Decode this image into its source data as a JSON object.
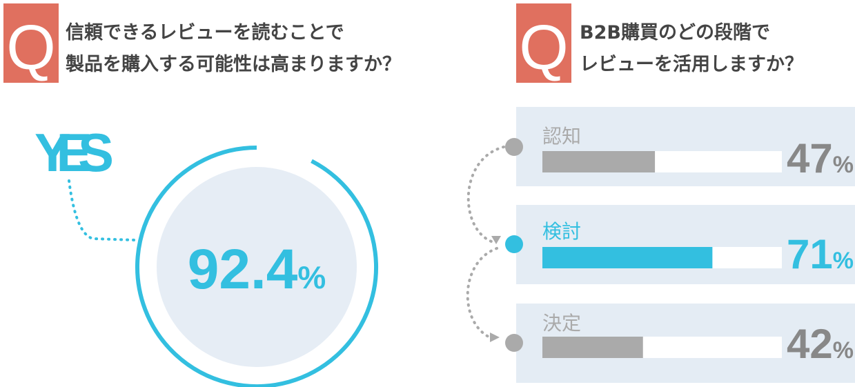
{
  "chart_data": [
    {
      "type": "gauge",
      "badge": "Q",
      "title": [
        "信頼できるレビューを読むことで",
        "製品を購入する可能性は高まりますか？"
      ],
      "label": "YES",
      "value": 92.4,
      "value_label": "92.4%",
      "ylim": [
        0,
        100
      ],
      "color": "#33bfe0"
    },
    {
      "type": "bar",
      "badge": "Q",
      "title": [
        "B2B購買のどの段階で",
        "レビューを活用しますか？"
      ],
      "categories": [
        "認知",
        "検討",
        "決定"
      ],
      "values": [
        47,
        71,
        42
      ],
      "value_labels": [
        "47%",
        "71%",
        "42%"
      ],
      "colors": [
        "#aaaaaa",
        "#33bfe0",
        "#aaaaaa"
      ],
      "xlim": [
        0,
        100
      ]
    }
  ]
}
